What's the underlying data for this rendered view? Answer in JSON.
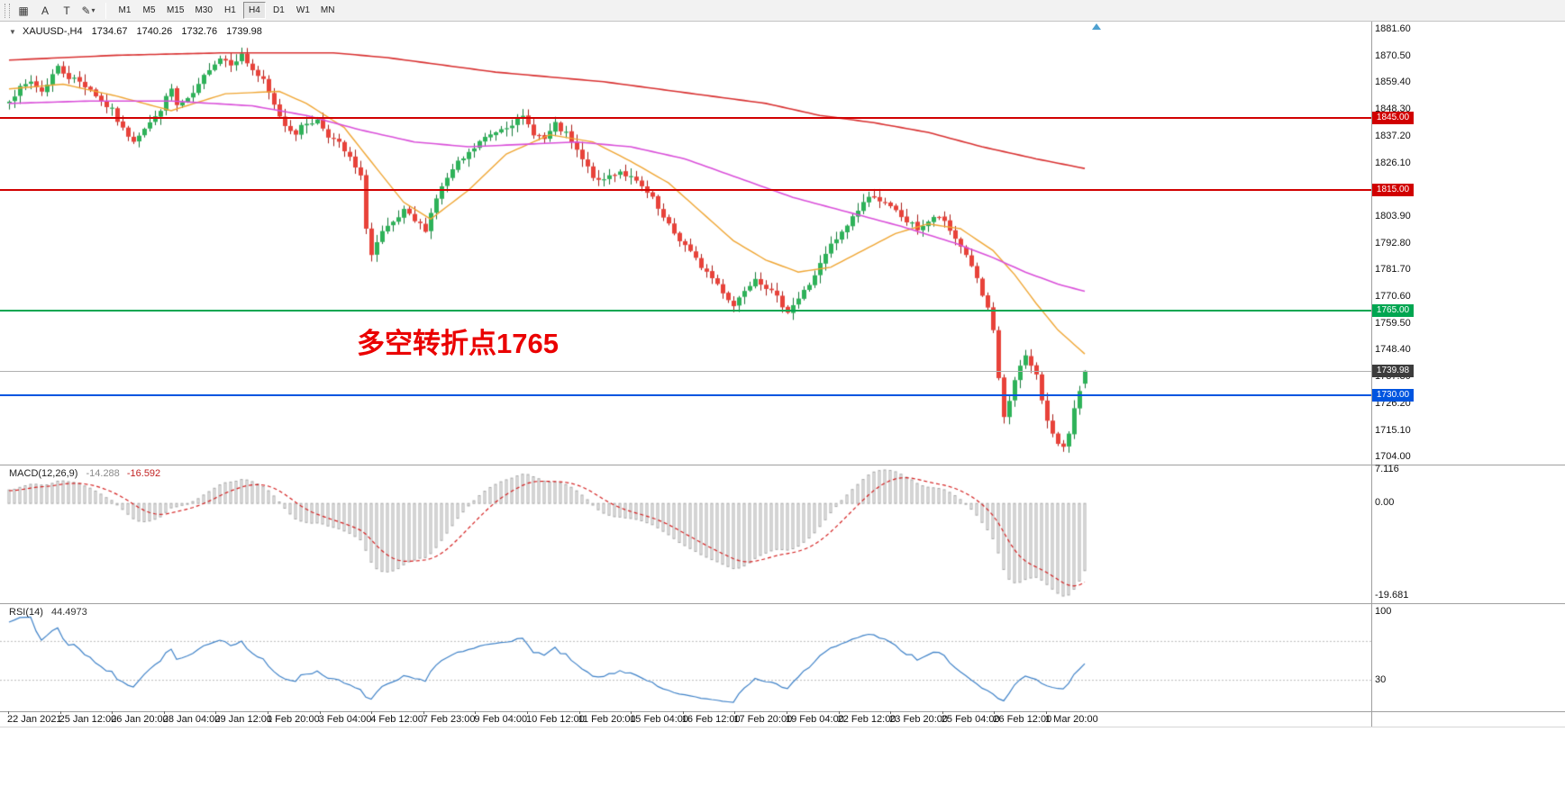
{
  "toolbar": {
    "tools": [
      {
        "name": "chart-grid-icon",
        "glyph": "▦"
      },
      {
        "name": "text-tool-icon",
        "glyph": "A"
      },
      {
        "name": "text-label-tool-icon",
        "glyph": "T"
      },
      {
        "name": "drawing-tool-icon",
        "glyph": "✎",
        "caret": "▾"
      }
    ],
    "timeframes": [
      "M1",
      "M5",
      "M15",
      "M30",
      "H1",
      "H4",
      "D1",
      "W1",
      "MN"
    ],
    "active_timeframe": "H4"
  },
  "chart": {
    "title": {
      "collapse_glyph": "▼",
      "symbol": "XAUUSD-,H4",
      "open": "1734.67",
      "high": "1740.26",
      "low": "1732.76",
      "close": "1739.98"
    },
    "annotation": {
      "text": "多空转折点1765"
    },
    "price_axis_labels": [
      "1881.60",
      "1870.50",
      "1859.40",
      "1848.30",
      "1837.20",
      "1826.10",
      "1815.00",
      "1803.90",
      "1792.80",
      "1781.70",
      "1770.60",
      "1759.50",
      "1748.40",
      "1737.30",
      "1726.20",
      "1715.10",
      "1704.00"
    ],
    "time_axis_labels": [
      "22 Jan 2021",
      "25 Jan 12:00",
      "26 Jan 20:00",
      "28 Jan 04:00",
      "29 Jan 12:00",
      "1 Feb 20:00",
      "3 Feb 04:00",
      "4 Feb 12:00",
      "7 Feb 23:00",
      "9 Feb 04:00",
      "10 Feb 12:00",
      "11 Feb 20:00",
      "15 Feb 04:00",
      "16 Feb 12:00",
      "17 Feb 20:00",
      "19 Feb 04:00",
      "22 Feb 12:00",
      "23 Feb 20:00",
      "25 Feb 04:00",
      "26 Feb 12:00",
      "1 Mar 20:00"
    ],
    "hlines": [
      {
        "value": 1845.0,
        "tag": "1845.00",
        "color": "#d10000",
        "tag_bg": "#d10000",
        "width": 2
      },
      {
        "value": 1815.0,
        "tag": "1815.00",
        "color": "#d10000",
        "tag_bg": "#d10000",
        "width": 2
      },
      {
        "value": 1765.0,
        "tag": "1765.00",
        "color": "#00a651",
        "tag_bg": "#00a651",
        "width": 2
      },
      {
        "value": 1739.98,
        "tag": "1739.98",
        "color": "#b0b0b0",
        "tag_bg": "#3c3c3c",
        "width": 1
      },
      {
        "value": 1730.0,
        "tag": "1730.00",
        "color": "#0055e0",
        "tag_bg": "#0055e0",
        "width": 2
      }
    ],
    "macd": {
      "name": "MACD(12,26,9)",
      "value1": "-14.288",
      "value2": "-16.592",
      "scale": [
        {
          "value": 7.116,
          "text": "7.116"
        },
        {
          "value": 0,
          "text": "0.00"
        },
        {
          "value": -19.681,
          "text": "-19.681"
        }
      ]
    },
    "rsi": {
      "name": "RSI(14)",
      "value": "44.4973",
      "scale": [
        {
          "value": 100,
          "text": "100"
        },
        {
          "value": 30,
          "text": "30"
        }
      ],
      "levels": [
        70,
        30
      ]
    }
  },
  "chart_data": {
    "type": "candlestick",
    "symbol": "XAUUSD",
    "timeframe": "H4",
    "title": "XAUUSD-,H4",
    "bars": 200,
    "seed": 7,
    "last_bar": {
      "open": 1734.67,
      "high": 1740.26,
      "low": 1732.76,
      "close": 1739.98
    },
    "y_axis": {
      "min": 1704.0,
      "max": 1881.6,
      "step": 11.1
    },
    "hline_values": [
      1845.0,
      1815.0,
      1765.0,
      1739.98,
      1730.0
    ],
    "price_path_anchors": [
      [
        0,
        1853
      ],
      [
        2,
        1857
      ],
      [
        4,
        1860
      ],
      [
        6,
        1856
      ],
      [
        8,
        1863
      ],
      [
        9,
        1866
      ],
      [
        11,
        1862
      ],
      [
        13,
        1860
      ],
      [
        15,
        1857
      ],
      [
        17,
        1852
      ],
      [
        19,
        1848
      ],
      [
        21,
        1840
      ],
      [
        23,
        1836
      ],
      [
        25,
        1841
      ],
      [
        27,
        1845
      ],
      [
        29,
        1853
      ],
      [
        30,
        1857
      ],
      [
        31,
        1850
      ],
      [
        33,
        1852
      ],
      [
        35,
        1858
      ],
      [
        37,
        1866
      ],
      [
        39,
        1870
      ],
      [
        41,
        1868
      ],
      [
        43,
        1871
      ],
      [
        45,
        1865
      ],
      [
        47,
        1860
      ],
      [
        49,
        1850
      ],
      [
        51,
        1842
      ],
      [
        53,
        1839
      ],
      [
        55,
        1843
      ],
      [
        57,
        1844
      ],
      [
        59,
        1838
      ],
      [
        61,
        1834
      ],
      [
        63,
        1828
      ],
      [
        65,
        1820
      ],
      [
        66,
        1800
      ],
      [
        67,
        1788
      ],
      [
        68,
        1793
      ],
      [
        69,
        1797
      ],
      [
        71,
        1801
      ],
      [
        73,
        1806
      ],
      [
        75,
        1802
      ],
      [
        77,
        1799
      ],
      [
        79,
        1812
      ],
      [
        81,
        1820
      ],
      [
        83,
        1826
      ],
      [
        85,
        1830
      ],
      [
        87,
        1835
      ],
      [
        89,
        1838
      ],
      [
        91,
        1841
      ],
      [
        93,
        1843
      ],
      [
        95,
        1845
      ],
      [
        97,
        1839
      ],
      [
        99,
        1836
      ],
      [
        101,
        1842
      ],
      [
        103,
        1838
      ],
      [
        105,
        1831
      ],
      [
        107,
        1824
      ],
      [
        109,
        1818
      ],
      [
        111,
        1821
      ],
      [
        113,
        1823
      ],
      [
        115,
        1820
      ],
      [
        117,
        1816
      ],
      [
        119,
        1811
      ],
      [
        121,
        1803
      ],
      [
        123,
        1797
      ],
      [
        125,
        1792
      ],
      [
        127,
        1786
      ],
      [
        129,
        1781
      ],
      [
        131,
        1776
      ],
      [
        133,
        1770
      ],
      [
        134,
        1767
      ],
      [
        136,
        1774
      ],
      [
        138,
        1779
      ],
      [
        140,
        1775
      ],
      [
        142,
        1770
      ],
      [
        144,
        1765
      ],
      [
        146,
        1770
      ],
      [
        148,
        1776
      ],
      [
        150,
        1784
      ],
      [
        152,
        1792
      ],
      [
        154,
        1797
      ],
      [
        156,
        1804
      ],
      [
        158,
        1810
      ],
      [
        160,
        1813
      ],
      [
        162,
        1809
      ],
      [
        164,
        1806
      ],
      [
        166,
        1802
      ],
      [
        168,
        1799
      ],
      [
        170,
        1802
      ],
      [
        172,
        1804
      ],
      [
        174,
        1798
      ],
      [
        176,
        1792
      ],
      [
        178,
        1784
      ],
      [
        180,
        1771
      ],
      [
        181,
        1765
      ],
      [
        182,
        1756
      ],
      [
        183,
        1737
      ],
      [
        184,
        1721
      ],
      [
        185,
        1727
      ],
      [
        186,
        1735
      ],
      [
        187,
        1742
      ],
      [
        188,
        1746
      ],
      [
        189,
        1743
      ],
      [
        190,
        1738
      ],
      [
        191,
        1728
      ],
      [
        192,
        1719
      ],
      [
        193,
        1713
      ],
      [
        194,
        1710
      ],
      [
        195,
        1709
      ],
      [
        196,
        1715
      ],
      [
        197,
        1724
      ],
      [
        198,
        1731
      ],
      [
        199,
        1739.98
      ]
    ],
    "ma_fast_orange": [
      [
        0,
        1857
      ],
      [
        10,
        1859
      ],
      [
        20,
        1854
      ],
      [
        30,
        1848
      ],
      [
        40,
        1855
      ],
      [
        50,
        1856
      ],
      [
        55,
        1851
      ],
      [
        62,
        1841
      ],
      [
        68,
        1824
      ],
      [
        73,
        1810
      ],
      [
        78,
        1803
      ],
      [
        85,
        1815
      ],
      [
        92,
        1830
      ],
      [
        100,
        1838
      ],
      [
        108,
        1835
      ],
      [
        115,
        1827
      ],
      [
        122,
        1818
      ],
      [
        128,
        1806
      ],
      [
        134,
        1794
      ],
      [
        140,
        1786
      ],
      [
        146,
        1781
      ],
      [
        152,
        1783
      ],
      [
        158,
        1790
      ],
      [
        164,
        1797
      ],
      [
        170,
        1801
      ],
      [
        176,
        1799
      ],
      [
        182,
        1790
      ],
      [
        186,
        1780
      ],
      [
        190,
        1768
      ],
      [
        194,
        1757
      ],
      [
        199,
        1747
      ]
    ],
    "ma_mid_magenta": [
      [
        0,
        1851
      ],
      [
        15,
        1852
      ],
      [
        30,
        1852
      ],
      [
        45,
        1850
      ],
      [
        55,
        1846
      ],
      [
        65,
        1840
      ],
      [
        75,
        1835
      ],
      [
        85,
        1833
      ],
      [
        95,
        1834
      ],
      [
        105,
        1835
      ],
      [
        115,
        1833
      ],
      [
        125,
        1828
      ],
      [
        135,
        1820
      ],
      [
        145,
        1812
      ],
      [
        155,
        1806
      ],
      [
        165,
        1800
      ],
      [
        175,
        1793
      ],
      [
        182,
        1787
      ],
      [
        188,
        1781
      ],
      [
        194,
        1776
      ],
      [
        199,
        1773
      ]
    ],
    "ma_slow_red": [
      [
        0,
        1869
      ],
      [
        20,
        1871
      ],
      [
        40,
        1872
      ],
      [
        60,
        1872
      ],
      [
        70,
        1870
      ],
      [
        80,
        1867
      ],
      [
        90,
        1864
      ],
      [
        100,
        1862
      ],
      [
        110,
        1860
      ],
      [
        120,
        1857
      ],
      [
        130,
        1854
      ],
      [
        140,
        1851
      ],
      [
        150,
        1846
      ],
      [
        160,
        1843
      ],
      [
        170,
        1839
      ],
      [
        180,
        1833
      ],
      [
        190,
        1828
      ],
      [
        199,
        1824
      ]
    ],
    "indicators": [
      {
        "type": "MACD",
        "params": [
          12,
          26,
          9
        ],
        "values": [
          -14.288,
          -16.592
        ],
        "scale": [
          7.116,
          0,
          -19.681
        ]
      },
      {
        "type": "RSI",
        "params": [
          14
        ],
        "value": 44.4973,
        "levels": [
          70,
          30
        ]
      }
    ]
  },
  "colors": {
    "up": "#2eb259",
    "up_border": "#157a3a",
    "down": "#e8423a",
    "down_border": "#a81d17",
    "ma_fast": "#efa532",
    "ma_mid": "#d94fd9",
    "ma_slow": "#d83030",
    "macd_hist": "#a8a8a8",
    "macd_signal": "#d42020",
    "rsi_line": "#3f82c8",
    "rsi_level": "#bbbbbb",
    "annotation": "#ea0000"
  }
}
